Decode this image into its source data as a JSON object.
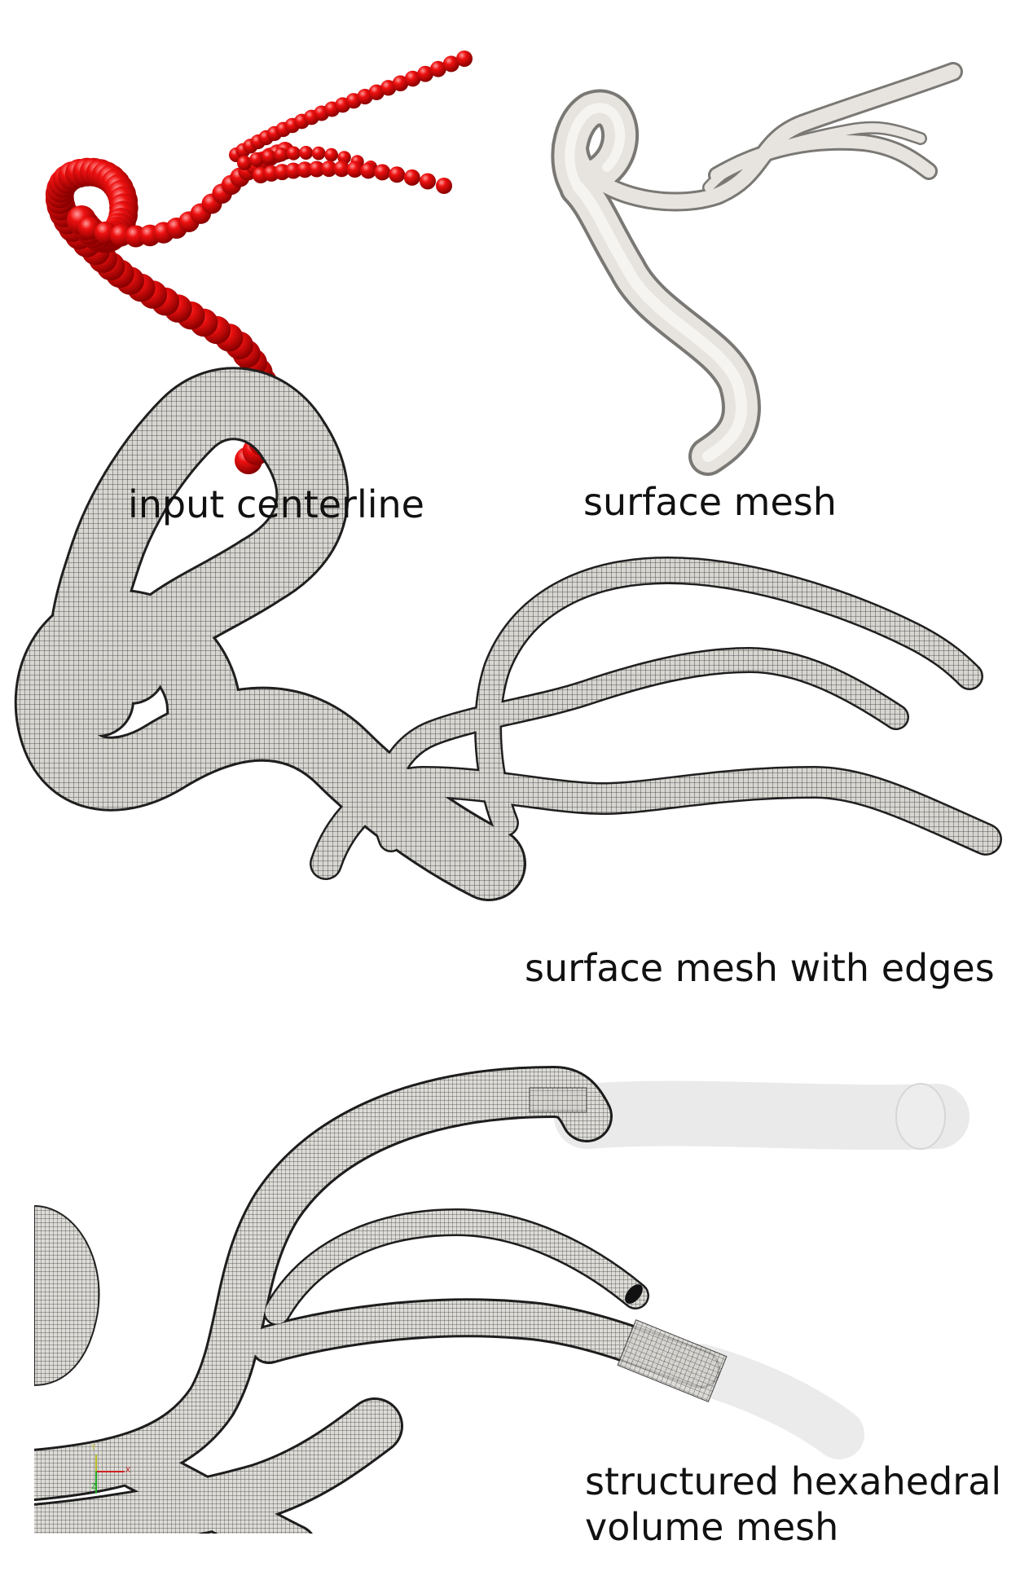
{
  "captions": {
    "centerline": "input centerline",
    "surface": "surface mesh",
    "edges": "surface mesh with edges",
    "hexahedral_line1": "structured hexahedral",
    "hexahedral_line2": "volume mesh"
  },
  "axes_triad": {
    "y": "Y",
    "x": "X",
    "z": "Z"
  },
  "colors": {
    "centerline_spheres": "#dd0000",
    "surface_fill": "#e4e1dc",
    "mesh_lines": "#2a2a2a",
    "transparent_part": "#ececec"
  }
}
